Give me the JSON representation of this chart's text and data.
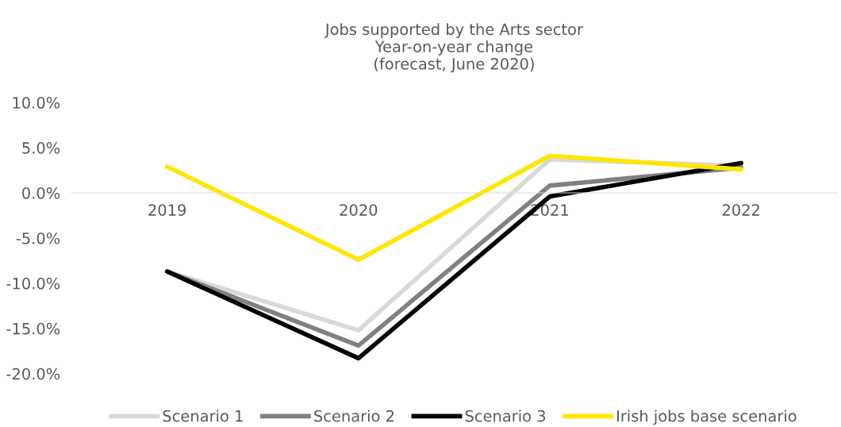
{
  "chart_data": {
    "type": "line",
    "title": "Jobs supported by the Arts sector\nYear-on-year change\n(forecast, June 2020)",
    "categories": [
      "2019",
      "2020",
      "2021",
      "2022"
    ],
    "series": [
      {
        "name": "Scenario 1",
        "color": "#d9d9d9",
        "values": [
          -8.7,
          -15.2,
          3.7,
          3.0
        ]
      },
      {
        "name": "Scenario 2",
        "color": "#808080",
        "values": [
          -8.7,
          -16.9,
          0.8,
          2.8
        ]
      },
      {
        "name": "Scenario 3",
        "color": "#000000",
        "values": [
          -8.7,
          -18.3,
          -0.4,
          3.3
        ]
      },
      {
        "name": "Irish jobs base scenario",
        "color": "#ffe600",
        "values": [
          2.9,
          -7.4,
          4.1,
          2.6
        ]
      }
    ],
    "ylim": [
      -20,
      10
    ],
    "yticks": [
      {
        "value": -20,
        "label": "-20.0%"
      },
      {
        "value": -15,
        "label": "-15.0%"
      },
      {
        "value": -10,
        "label": "-10.0%"
      },
      {
        "value": -5,
        "label": "-5.0%"
      },
      {
        "value": 0,
        "label": "0.0%"
      },
      {
        "value": 5,
        "label": "5.0%"
      },
      {
        "value": 10,
        "label": "10.0%"
      }
    ],
    "grid": false,
    "legend": "bottom",
    "marker": "none",
    "line_style": "solid"
  }
}
